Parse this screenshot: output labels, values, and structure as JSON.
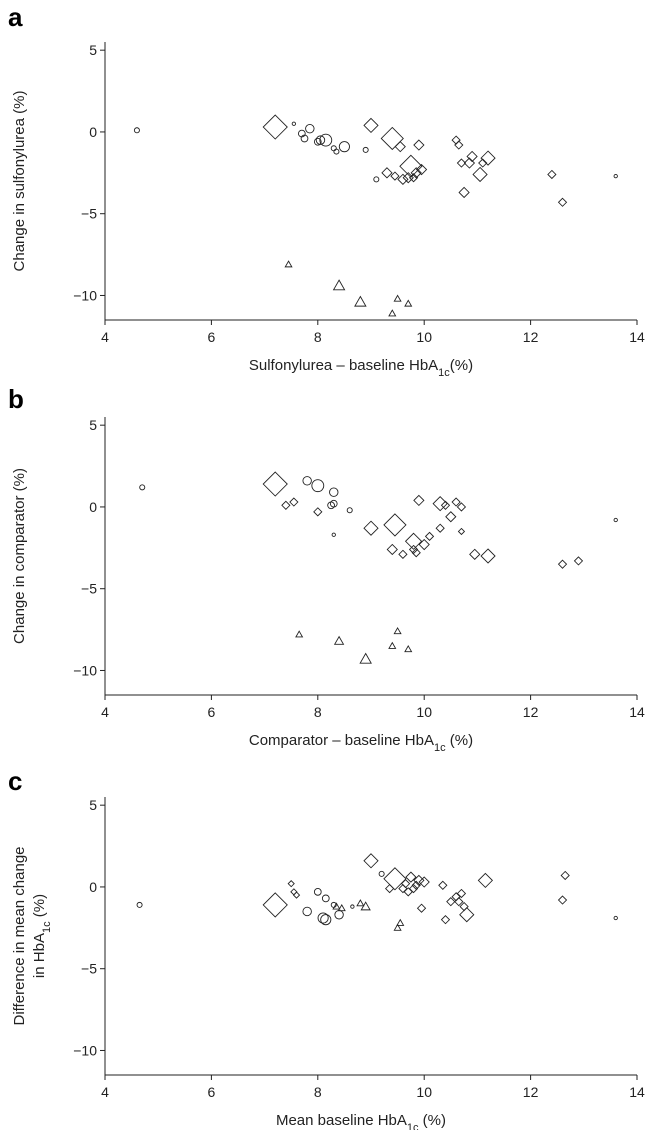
{
  "chart_data": [
    {
      "panel": "a",
      "type": "scatter",
      "ylabel": "Change in sulfonylurea (%)",
      "xlabel": {
        "pre": "Sulfonylurea – baseline HbA",
        "sub": "1c",
        "post": "(%)"
      },
      "xlim": [
        4,
        14
      ],
      "ylim": [
        -11.5,
        5.5
      ],
      "xticks": [
        4,
        6,
        8,
        10,
        12,
        14
      ],
      "yticks": [
        5,
        0,
        -5,
        -10
      ],
      "points": [
        {
          "x": 4.6,
          "y": 0.1,
          "shape": "circle",
          "size": 3
        },
        {
          "x": 7.2,
          "y": 0.3,
          "shape": "diamond",
          "size": 12
        },
        {
          "x": 7.55,
          "y": 0.5,
          "shape": "circle",
          "size": 2
        },
        {
          "x": 7.7,
          "y": -0.1,
          "shape": "circle",
          "size": 4
        },
        {
          "x": 7.75,
          "y": -0.4,
          "shape": "circle",
          "size": 4
        },
        {
          "x": 7.85,
          "y": 0.2,
          "shape": "circle",
          "size": 5
        },
        {
          "x": 8.0,
          "y": -0.6,
          "shape": "circle",
          "size": 4
        },
        {
          "x": 8.05,
          "y": -0.5,
          "shape": "circle",
          "size": 5
        },
        {
          "x": 8.15,
          "y": -0.5,
          "shape": "circle",
          "size": 7
        },
        {
          "x": 8.3,
          "y": -1.0,
          "shape": "circle",
          "size": 3
        },
        {
          "x": 8.35,
          "y": -1.2,
          "shape": "circle",
          "size": 3
        },
        {
          "x": 8.5,
          "y": -0.9,
          "shape": "circle",
          "size": 6
        },
        {
          "x": 8.9,
          "y": -1.1,
          "shape": "circle",
          "size": 3
        },
        {
          "x": 9.0,
          "y": 0.4,
          "shape": "diamond",
          "size": 7
        },
        {
          "x": 9.1,
          "y": -2.9,
          "shape": "circle",
          "size": 3
        },
        {
          "x": 9.3,
          "y": -2.5,
          "shape": "diamond",
          "size": 5
        },
        {
          "x": 9.4,
          "y": -0.4,
          "shape": "diamond",
          "size": 11
        },
        {
          "x": 9.45,
          "y": -2.7,
          "shape": "diamond",
          "size": 4
        },
        {
          "x": 9.55,
          "y": -0.9,
          "shape": "diamond",
          "size": 5
        },
        {
          "x": 9.6,
          "y": -2.9,
          "shape": "diamond",
          "size": 5
        },
        {
          "x": 9.7,
          "y": -2.8,
          "shape": "diamond",
          "size": 5
        },
        {
          "x": 9.75,
          "y": -2.1,
          "shape": "diamond",
          "size": 11
        },
        {
          "x": 9.8,
          "y": -2.8,
          "shape": "diamond",
          "size": 4
        },
        {
          "x": 9.85,
          "y": -2.5,
          "shape": "diamond",
          "size": 5
        },
        {
          "x": 9.9,
          "y": -0.8,
          "shape": "diamond",
          "size": 5
        },
        {
          "x": 9.95,
          "y": -2.3,
          "shape": "diamond",
          "size": 5
        },
        {
          "x": 10.6,
          "y": -0.5,
          "shape": "diamond",
          "size": 4
        },
        {
          "x": 10.65,
          "y": -0.8,
          "shape": "diamond",
          "size": 4
        },
        {
          "x": 10.7,
          "y": -1.9,
          "shape": "diamond",
          "size": 4
        },
        {
          "x": 10.75,
          "y": -3.7,
          "shape": "diamond",
          "size": 5
        },
        {
          "x": 10.85,
          "y": -1.9,
          "shape": "diamond",
          "size": 5
        },
        {
          "x": 10.9,
          "y": -1.5,
          "shape": "diamond",
          "size": 5
        },
        {
          "x": 11.05,
          "y": -2.6,
          "shape": "diamond",
          "size": 7
        },
        {
          "x": 11.1,
          "y": -1.9,
          "shape": "diamond",
          "size": 4
        },
        {
          "x": 11.2,
          "y": -1.6,
          "shape": "diamond",
          "size": 7
        },
        {
          "x": 12.4,
          "y": -2.6,
          "shape": "diamond",
          "size": 4
        },
        {
          "x": 12.6,
          "y": -4.3,
          "shape": "diamond",
          "size": 4
        },
        {
          "x": 13.6,
          "y": -2.7,
          "shape": "circle",
          "size": 2
        },
        {
          "x": 7.45,
          "y": -8.1,
          "shape": "triangle",
          "size": 3
        },
        {
          "x": 8.4,
          "y": -9.4,
          "shape": "triangle",
          "size": 5
        },
        {
          "x": 8.8,
          "y": -10.4,
          "shape": "triangle",
          "size": 5
        },
        {
          "x": 9.4,
          "y": -11.1,
          "shape": "triangle",
          "size": 3
        },
        {
          "x": 9.5,
          "y": -10.2,
          "shape": "triangle",
          "size": 3
        },
        {
          "x": 9.7,
          "y": -10.5,
          "shape": "triangle",
          "size": 3
        }
      ]
    },
    {
      "panel": "b",
      "type": "scatter",
      "ylabel": "Change in comparator (%)",
      "xlabel": {
        "pre": "Comparator – baseline HbA",
        "sub": "1c",
        "post": " (%)"
      },
      "xlim": [
        4,
        14
      ],
      "ylim": [
        -11.5,
        5.5
      ],
      "xticks": [
        4,
        6,
        8,
        10,
        12,
        14
      ],
      "yticks": [
        5,
        0,
        -5,
        -10
      ],
      "points": [
        {
          "x": 4.7,
          "y": 1.2,
          "shape": "circle",
          "size": 3
        },
        {
          "x": 7.2,
          "y": 1.4,
          "shape": "diamond",
          "size": 12
        },
        {
          "x": 7.4,
          "y": 0.1,
          "shape": "diamond",
          "size": 4
        },
        {
          "x": 7.55,
          "y": 0.3,
          "shape": "diamond",
          "size": 4
        },
        {
          "x": 7.8,
          "y": 1.6,
          "shape": "circle",
          "size": 5
        },
        {
          "x": 8.0,
          "y": 1.3,
          "shape": "circle",
          "size": 7
        },
        {
          "x": 8.0,
          "y": -0.3,
          "shape": "diamond",
          "size": 4
        },
        {
          "x": 8.25,
          "y": 0.1,
          "shape": "circle",
          "size": 4
        },
        {
          "x": 8.3,
          "y": 0.9,
          "shape": "circle",
          "size": 5
        },
        {
          "x": 8.3,
          "y": 0.2,
          "shape": "circle",
          "size": 4
        },
        {
          "x": 8.3,
          "y": -1.7,
          "shape": "circle",
          "size": 2
        },
        {
          "x": 8.6,
          "y": -0.2,
          "shape": "circle",
          "size": 3
        },
        {
          "x": 9.0,
          "y": -1.3,
          "shape": "diamond",
          "size": 7
        },
        {
          "x": 9.45,
          "y": -1.1,
          "shape": "diamond",
          "size": 11
        },
        {
          "x": 9.4,
          "y": -2.6,
          "shape": "diamond",
          "size": 5
        },
        {
          "x": 9.6,
          "y": -2.9,
          "shape": "diamond",
          "size": 4
        },
        {
          "x": 9.8,
          "y": -2.1,
          "shape": "diamond",
          "size": 8
        },
        {
          "x": 9.8,
          "y": -2.6,
          "shape": "diamond",
          "size": 4
        },
        {
          "x": 9.85,
          "y": -2.8,
          "shape": "diamond",
          "size": 4
        },
        {
          "x": 9.9,
          "y": 0.4,
          "shape": "diamond",
          "size": 5
        },
        {
          "x": 10.0,
          "y": -2.3,
          "shape": "diamond",
          "size": 5
        },
        {
          "x": 10.1,
          "y": -1.8,
          "shape": "diamond",
          "size": 4
        },
        {
          "x": 10.3,
          "y": 0.2,
          "shape": "diamond",
          "size": 7
        },
        {
          "x": 10.4,
          "y": 0.1,
          "shape": "diamond",
          "size": 4
        },
        {
          "x": 10.5,
          "y": -0.6,
          "shape": "diamond",
          "size": 5
        },
        {
          "x": 10.6,
          "y": 0.3,
          "shape": "diamond",
          "size": 4
        },
        {
          "x": 10.7,
          "y": 0.0,
          "shape": "diamond",
          "size": 4
        },
        {
          "x": 10.7,
          "y": -1.5,
          "shape": "diamond",
          "size": 3
        },
        {
          "x": 10.3,
          "y": -1.3,
          "shape": "diamond",
          "size": 4
        },
        {
          "x": 10.95,
          "y": -2.9,
          "shape": "diamond",
          "size": 5
        },
        {
          "x": 11.2,
          "y": -3.0,
          "shape": "diamond",
          "size": 7
        },
        {
          "x": 12.6,
          "y": -3.5,
          "shape": "diamond",
          "size": 4
        },
        {
          "x": 12.9,
          "y": -3.3,
          "shape": "diamond",
          "size": 4
        },
        {
          "x": 13.6,
          "y": -0.8,
          "shape": "circle",
          "size": 2
        },
        {
          "x": 7.65,
          "y": -7.8,
          "shape": "triangle",
          "size": 3
        },
        {
          "x": 8.4,
          "y": -8.2,
          "shape": "triangle",
          "size": 4
        },
        {
          "x": 8.9,
          "y": -9.3,
          "shape": "triangle",
          "size": 5
        },
        {
          "x": 9.4,
          "y": -8.5,
          "shape": "triangle",
          "size": 3
        },
        {
          "x": 9.5,
          "y": -7.6,
          "shape": "triangle",
          "size": 3
        },
        {
          "x": 9.7,
          "y": -8.7,
          "shape": "triangle",
          "size": 3
        }
      ]
    },
    {
      "panel": "c",
      "type": "scatter",
      "ylabel_line1": "Difference in mean change",
      "ylabel_line2": {
        "pre": "in HbA",
        "sub": "1c",
        "post": " (%)"
      },
      "xlabel": {
        "pre": "Mean baseline HbA",
        "sub": "1c",
        "post": " (%)"
      },
      "xlim": [
        4,
        14
      ],
      "ylim": [
        -11.5,
        5.5
      ],
      "xticks": [
        4,
        6,
        8,
        10,
        12,
        14
      ],
      "yticks": [
        5,
        0,
        -5,
        -10
      ],
      "points": [
        {
          "x": 4.65,
          "y": -1.1,
          "shape": "circle",
          "size": 3
        },
        {
          "x": 7.2,
          "y": -1.1,
          "shape": "diamond",
          "size": 12
        },
        {
          "x": 7.5,
          "y": 0.2,
          "shape": "diamond",
          "size": 3
        },
        {
          "x": 7.55,
          "y": -0.3,
          "shape": "diamond",
          "size": 3
        },
        {
          "x": 7.6,
          "y": -0.5,
          "shape": "diamond",
          "size": 3
        },
        {
          "x": 7.8,
          "y": -1.5,
          "shape": "circle",
          "size": 5
        },
        {
          "x": 8.0,
          "y": -0.3,
          "shape": "circle",
          "size": 4
        },
        {
          "x": 8.1,
          "y": -1.9,
          "shape": "circle",
          "size": 6
        },
        {
          "x": 8.15,
          "y": -2.0,
          "shape": "circle",
          "size": 6
        },
        {
          "x": 8.15,
          "y": -0.7,
          "shape": "circle",
          "size": 4
        },
        {
          "x": 8.3,
          "y": -1.1,
          "shape": "circle",
          "size": 3
        },
        {
          "x": 8.35,
          "y": -1.2,
          "shape": "triangle",
          "size": 3
        },
        {
          "x": 8.4,
          "y": -1.7,
          "shape": "circle",
          "size": 5
        },
        {
          "x": 8.45,
          "y": -1.3,
          "shape": "triangle",
          "size": 3
        },
        {
          "x": 8.65,
          "y": -1.2,
          "shape": "circle",
          "size": 2
        },
        {
          "x": 8.8,
          "y": -1.0,
          "shape": "triangle",
          "size": 3
        },
        {
          "x": 8.9,
          "y": -1.2,
          "shape": "triangle",
          "size": 4
        },
        {
          "x": 9.0,
          "y": 1.6,
          "shape": "diamond",
          "size": 7
        },
        {
          "x": 9.2,
          "y": 0.8,
          "shape": "circle",
          "size": 3
        },
        {
          "x": 9.35,
          "y": -0.1,
          "shape": "diamond",
          "size": 4
        },
        {
          "x": 9.45,
          "y": 0.5,
          "shape": "diamond",
          "size": 11
        },
        {
          "x": 9.5,
          "y": -2.5,
          "shape": "triangle",
          "size": 3
        },
        {
          "x": 9.55,
          "y": -2.2,
          "shape": "triangle",
          "size": 3
        },
        {
          "x": 9.6,
          "y": -0.1,
          "shape": "diamond",
          "size": 4
        },
        {
          "x": 9.65,
          "y": 0.2,
          "shape": "diamond",
          "size": 4
        },
        {
          "x": 9.7,
          "y": -0.3,
          "shape": "diamond",
          "size": 4
        },
        {
          "x": 9.75,
          "y": 0.6,
          "shape": "diamond",
          "size": 5
        },
        {
          "x": 9.8,
          "y": -0.1,
          "shape": "diamond",
          "size": 4
        },
        {
          "x": 9.85,
          "y": 0.1,
          "shape": "diamond",
          "size": 4
        },
        {
          "x": 9.9,
          "y": 0.4,
          "shape": "diamond",
          "size": 5
        },
        {
          "x": 9.95,
          "y": -1.3,
          "shape": "diamond",
          "size": 4
        },
        {
          "x": 10.0,
          "y": 0.3,
          "shape": "diamond",
          "size": 5
        },
        {
          "x": 10.35,
          "y": 0.1,
          "shape": "diamond",
          "size": 4
        },
        {
          "x": 10.4,
          "y": -2.0,
          "shape": "diamond",
          "size": 4
        },
        {
          "x": 10.5,
          "y": -0.9,
          "shape": "diamond",
          "size": 4
        },
        {
          "x": 10.6,
          "y": -0.6,
          "shape": "diamond",
          "size": 4
        },
        {
          "x": 10.65,
          "y": -0.9,
          "shape": "diamond",
          "size": 4
        },
        {
          "x": 10.7,
          "y": -0.4,
          "shape": "diamond",
          "size": 4
        },
        {
          "x": 10.75,
          "y": -1.2,
          "shape": "diamond",
          "size": 4
        },
        {
          "x": 10.8,
          "y": -1.7,
          "shape": "diamond",
          "size": 7
        },
        {
          "x": 11.15,
          "y": 0.4,
          "shape": "diamond",
          "size": 7
        },
        {
          "x": 12.65,
          "y": 0.7,
          "shape": "diamond",
          "size": 4
        },
        {
          "x": 12.6,
          "y": -0.8,
          "shape": "diamond",
          "size": 4
        },
        {
          "x": 13.6,
          "y": -1.9,
          "shape": "circle",
          "size": 2
        }
      ]
    }
  ],
  "panel_labels": [
    "a",
    "b",
    "c"
  ]
}
